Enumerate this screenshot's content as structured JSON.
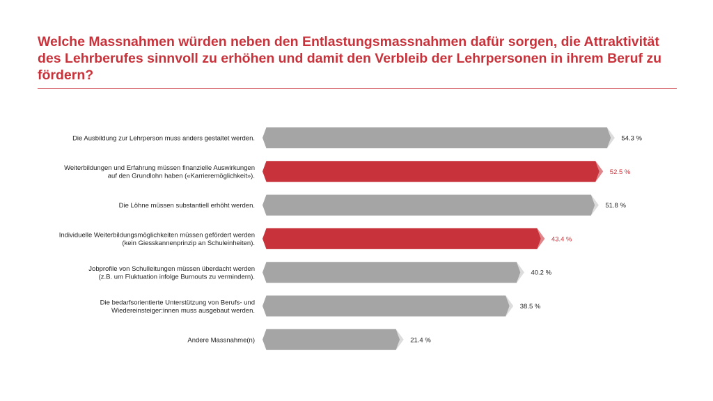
{
  "title": "Welche Massnahmen würden neben den Entlastungsmassnahmen dafür sorgen, die Attraktivität des Lehrberufes sinnvoll zu erhöhen und damit den Verbleib der Lehrpersonen in ihrem Beruf zu fördern?",
  "colors": {
    "accent": "#c8333b",
    "accent_tip": "#e0868b",
    "bar": "#a5a5a5",
    "bar_tip": "#dcdcdc",
    "label_text": "#222222"
  },
  "chart_data": {
    "type": "bar",
    "orientation": "horizontal",
    "title": "Welche Massnahmen würden neben den Entlastungsmassnahmen dafür sorgen, die Attraktivität des Lehrberufes sinnvoll zu erhöhen und damit den Verbleib der Lehrpersonen in ihrem Beruf zu fördern?",
    "xlabel": "",
    "ylabel": "",
    "xlim": [
      0,
      60
    ],
    "grid": false,
    "unit": "%",
    "categories": [
      [
        "Die Ausbildung zur Lehrperson muss anders gestaltet werden."
      ],
      [
        "Weiterbildungen und Erfahrung müssen finanzielle Auswirkungen",
        "auf den Grundlohn haben («Karrieremöglichkeit»)."
      ],
      [
        "Die Löhne müssen substantiell erhöht werden."
      ],
      [
        "Individuelle Weiterbildungsmöglichkeiten müssen gefördert werden",
        "(kein Giesskannenprinzip an Schuleinheiten)."
      ],
      [
        "Jobprofile von Schulleitungen müssen überdacht werden",
        "(z.B. um Fluktuation infolge Burnouts zu vermindern)."
      ],
      [
        "Die bedarfsorientierte Unterstützung von Berufs- und",
        "Wiedereinsteiger:innen muss ausgebaut werden."
      ],
      [
        "Andere Massnahme(n)"
      ]
    ],
    "values": [
      54.3,
      52.5,
      51.8,
      43.4,
      40.2,
      38.5,
      21.4
    ],
    "value_labels": [
      "54.3 %",
      "52.5 %",
      "51.8 %",
      "43.4 %",
      "40.2 %",
      "38.5 %",
      "21.4 %"
    ],
    "highlighted": [
      false,
      true,
      false,
      true,
      false,
      false,
      false
    ]
  }
}
